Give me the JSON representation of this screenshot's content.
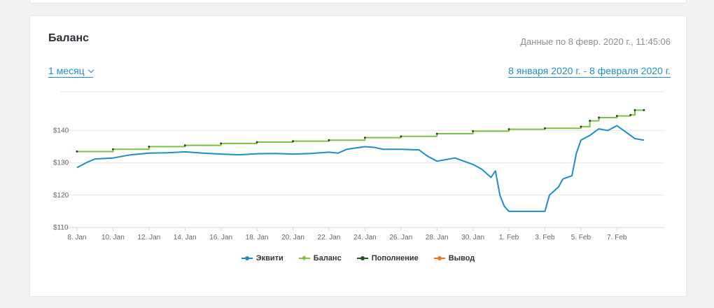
{
  "card": {
    "title": "Баланс",
    "data_date": "Данные по 8 февр. 2020 г., 11:45:06",
    "period_label": "1 месяц",
    "date_range": "8 января 2020 г. - 8 февраля 2020 г."
  },
  "icons": {
    "period_dropdown": "chevron-down-icon"
  },
  "chart_data": {
    "type": "line",
    "x_tick_labels": [
      "8. Jan",
      "10. Jan",
      "12. Jan",
      "14. Jan",
      "16. Jan",
      "18. Jan",
      "20. Jan",
      "22. Jan",
      "24. Jan",
      "26. Jan",
      "28. Jan",
      "30. Jan",
      "1. Feb",
      "3. Feb",
      "5. Feb",
      "7. Feb"
    ],
    "y_tick_labels": [
      "$110",
      "$120",
      "$130",
      "$140"
    ],
    "ylim": [
      110,
      152
    ],
    "xlim": [
      "2020-01-08",
      "2020-02-08"
    ],
    "grid": true,
    "legend_position": "bottom",
    "series": [
      {
        "name": "Эквити",
        "color": "#1b8fc6",
        "marker": "circle",
        "points": [
          [
            "2020-01-08",
            128.5
          ],
          [
            "2020-01-08T12:00",
            130.0
          ],
          [
            "2020-01-09",
            131.2
          ],
          [
            "2020-01-10",
            131.5
          ],
          [
            "2020-01-11",
            132.5
          ],
          [
            "2020-01-12",
            133.0
          ],
          [
            "2020-01-13",
            133.1
          ],
          [
            "2020-01-14",
            133.4
          ],
          [
            "2020-01-15",
            133.0
          ],
          [
            "2020-01-16",
            132.7
          ],
          [
            "2020-01-17",
            132.5
          ],
          [
            "2020-01-18",
            132.8
          ],
          [
            "2020-01-19",
            132.9
          ],
          [
            "2020-01-20",
            132.7
          ],
          [
            "2020-01-21",
            132.9
          ],
          [
            "2020-01-22",
            133.3
          ],
          [
            "2020-01-22T12:00",
            133.0
          ],
          [
            "2020-01-23",
            134.2
          ],
          [
            "2020-01-24",
            135.0
          ],
          [
            "2020-01-24T12:00",
            134.8
          ],
          [
            "2020-01-25",
            134.2
          ],
          [
            "2020-01-26",
            134.2
          ],
          [
            "2020-01-27",
            134.0
          ],
          [
            "2020-01-27T12:00",
            132.0
          ],
          [
            "2020-01-28",
            130.5
          ],
          [
            "2020-01-29",
            131.5
          ],
          [
            "2020-01-30",
            129.5
          ],
          [
            "2020-01-30T12:00",
            128.0
          ],
          [
            "2020-01-31",
            125.5
          ],
          [
            "2020-01-31T06:00",
            127.5
          ],
          [
            "2020-01-31T12:00",
            120.0
          ],
          [
            "2020-01-31T18:00",
            116.5
          ],
          [
            "2020-02-01",
            115.0
          ],
          [
            "2020-02-02",
            115.0
          ],
          [
            "2020-02-03",
            115.0
          ],
          [
            "2020-02-03T06:00",
            120.0
          ],
          [
            "2020-02-03T18:00",
            122.5
          ],
          [
            "2020-02-04",
            125.0
          ],
          [
            "2020-02-04T12:00",
            126.0
          ],
          [
            "2020-02-04T18:00",
            133.0
          ],
          [
            "2020-02-05",
            137.0
          ],
          [
            "2020-02-05T12:00",
            138.5
          ],
          [
            "2020-02-06",
            140.5
          ],
          [
            "2020-02-06T12:00",
            140.0
          ],
          [
            "2020-02-07",
            141.5
          ],
          [
            "2020-02-07T12:00",
            139.5
          ],
          [
            "2020-02-08",
            137.5
          ],
          [
            "2020-02-08T12:00",
            137.0
          ]
        ]
      },
      {
        "name": "Баланс",
        "color": "#7cc242",
        "marker": "diamond",
        "points": [
          [
            "2020-01-08",
            133.5
          ],
          [
            "2020-01-10",
            134.2
          ],
          [
            "2020-01-12",
            135.0
          ],
          [
            "2020-01-14",
            135.4
          ],
          [
            "2020-01-16",
            136.0
          ],
          [
            "2020-01-18",
            136.4
          ],
          [
            "2020-01-20",
            136.7
          ],
          [
            "2020-01-22",
            137.0
          ],
          [
            "2020-01-24",
            137.8
          ],
          [
            "2020-01-26",
            138.2
          ],
          [
            "2020-01-28",
            139.0
          ],
          [
            "2020-01-30",
            139.8
          ],
          [
            "2020-02-01",
            140.4
          ],
          [
            "2020-02-03",
            140.7
          ],
          [
            "2020-02-05",
            141.2
          ],
          [
            "2020-02-05T12:00",
            143.0
          ],
          [
            "2020-02-06",
            144.0
          ],
          [
            "2020-02-07",
            144.5
          ],
          [
            "2020-02-07T18:00",
            144.8
          ],
          [
            "2020-02-08",
            146.3
          ],
          [
            "2020-02-08T12:00",
            146.3
          ]
        ]
      },
      {
        "name": "Пополнение",
        "color": "#1f5b1f",
        "marker": "circle",
        "points": []
      },
      {
        "name": "Вывод",
        "color": "#e87722",
        "marker": "circle",
        "points": []
      }
    ]
  }
}
